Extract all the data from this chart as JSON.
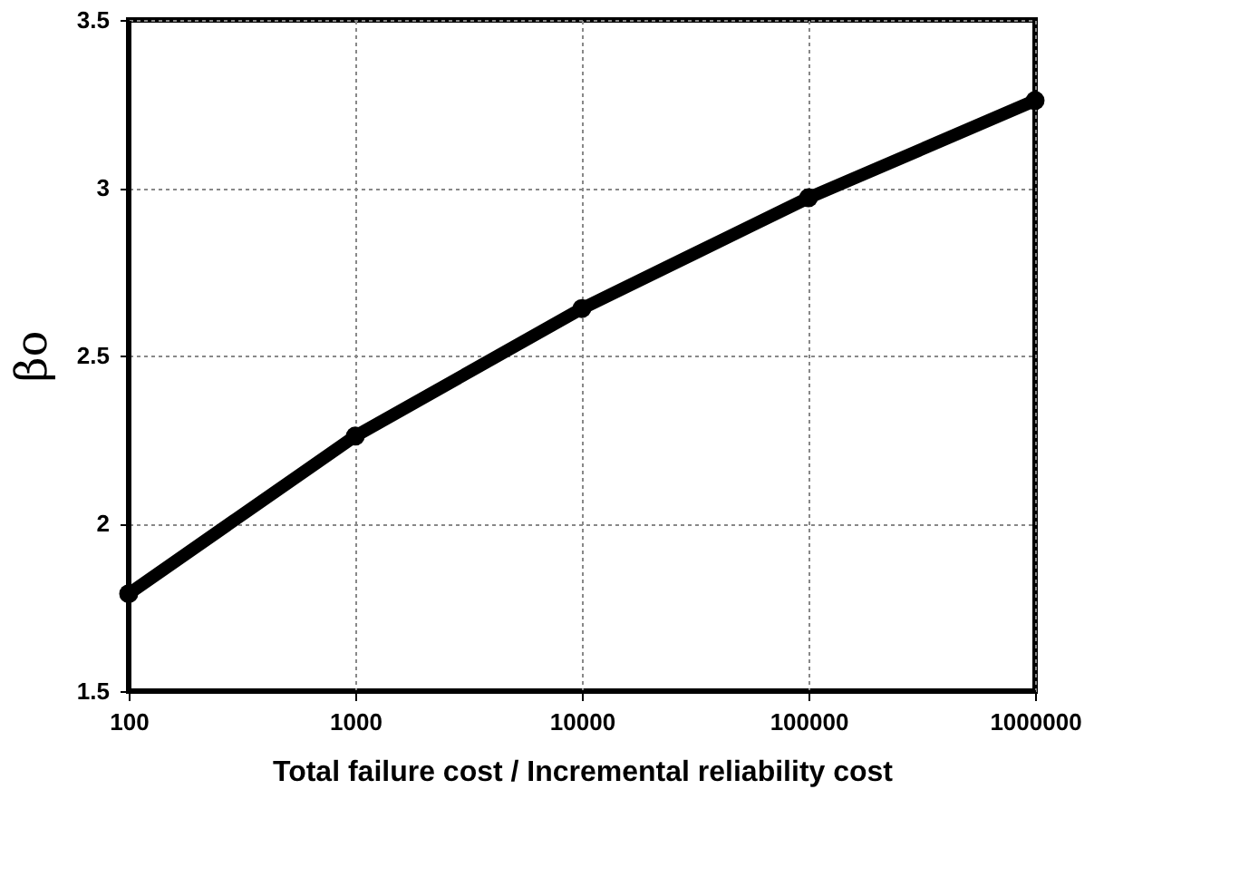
{
  "chart_data": {
    "type": "line",
    "xlabel": "Total failure cost / Incremental reliability cost",
    "ylabel": "βo",
    "x": [
      100,
      1000,
      10000,
      100000,
      1000000
    ],
    "series": [
      {
        "color": "#000000",
        "values": [
          1.79,
          2.26,
          2.64,
          2.97,
          3.26
        ]
      }
    ],
    "log": "x",
    "xlim": [
      100,
      1000000
    ],
    "xticks": [
      100,
      1000,
      10000,
      100000,
      1000000
    ],
    "ylim": [
      1.5,
      3.5
    ],
    "yticks": [
      1.5,
      2,
      2.5,
      3,
      3.5
    ],
    "grid": true,
    "marker": "circle",
    "line_style": "solid"
  }
}
